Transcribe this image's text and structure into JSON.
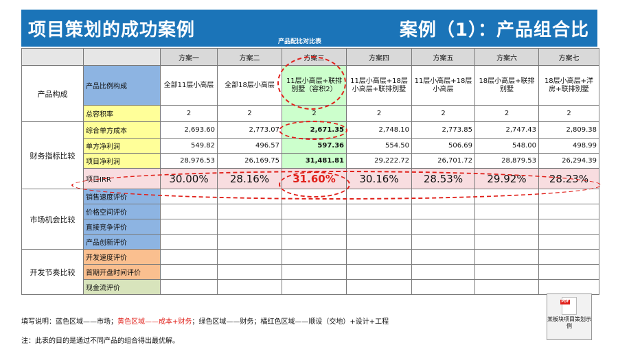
{
  "title_left": "项目策划的成功案例",
  "title_right": "案例（1）：产品组合比",
  "subheading": "产品配比对比表",
  "table": {
    "columns": [
      "方案一",
      "方案二",
      "方案三",
      "方案四",
      "方案五",
      "方案六",
      "方案七"
    ],
    "groups": {
      "product": "产品构成",
      "finance": "财务指标比较",
      "market": "市场机会比较",
      "dev": "开发节奏比较"
    },
    "rows": {
      "ratio": {
        "label": "产品比例构成",
        "values": [
          "全部11层小高层",
          "全部18层小高层",
          "11层小高层+联排别墅（容积2）",
          "11层小高层+18层小高层+联排别墅",
          "11层小高层+18层小高层",
          "18层小高层+联排别墅",
          "18层小高层+洋房+联排别墅"
        ]
      },
      "far": {
        "label": "总容积率",
        "values": [
          "2",
          "2",
          "2",
          "2",
          "2",
          "2",
          "2"
        ]
      },
      "unitcost": {
        "label": "综合单方成本",
        "values": [
          "2,693.60",
          "2,773.07",
          "2,671.35",
          "2,748.10",
          "2,773.85",
          "2,747.43",
          "2,809.38"
        ]
      },
      "unitprofit": {
        "label": "单方净利润",
        "values": [
          "549.82",
          "496.57",
          "597.36",
          "554.50",
          "506.69",
          "548.00",
          "498.99"
        ]
      },
      "netprofit": {
        "label": "项目净利润",
        "values": [
          "28,976.53",
          "26,169.75",
          "31,481.81",
          "29,222.72",
          "26,701.72",
          "28,879.53",
          "26,294.39"
        ]
      },
      "irr": {
        "label": "项目IRR",
        "values": [
          "30.00%",
          "28.16%",
          "31.60%",
          "30.16%",
          "28.53%",
          "29.92%",
          "28.23%"
        ]
      },
      "sales": {
        "label": "销售速度评价"
      },
      "price": {
        "label": "价格空间评价"
      },
      "compete": {
        "label": "直接竞争评价"
      },
      "innov": {
        "label": "产品创新评价"
      },
      "devspeed": {
        "label": "开发速度评价"
      },
      "firstopen": {
        "label": "首期开盘时间评价"
      },
      "cashflow": {
        "label": "现金流评价"
      }
    }
  },
  "legend": {
    "prefix": "填写说明：蓝色区域——市场；",
    "red": "黄色区域——成本+财务",
    "suffix": "；绿色区域——财务；橘红色区域——顺设（交地）+设计+工程"
  },
  "note": "注：此表的目的是通过不同产品的组合得出最优解。",
  "attachment": {
    "label": "某板块项目策划示例",
    "icon": "pdf-file-icon"
  },
  "colors": {
    "banner": "#1b74b8",
    "highlight_red": "#e0201a"
  }
}
